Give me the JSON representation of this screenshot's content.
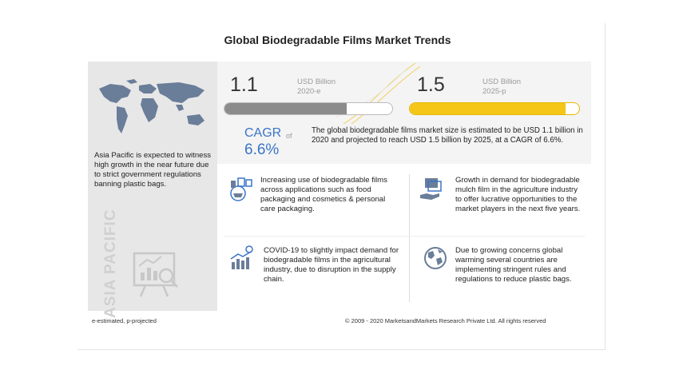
{
  "title": "Global Biodegradable Films Market Trends",
  "region": {
    "vertical_label": "ASIA PACIFIC",
    "description": "Asia Pacific is expected to witness high growth in the near future due to strict government regulations banning plastic bags."
  },
  "stats": {
    "value_2020": "1.1",
    "unit_2020_line1": "USD Billion",
    "unit_2020_line2": "2020-e",
    "value_2025": "1.5",
    "unit_2025_line1": "USD Billion",
    "unit_2025_line2": "2025-p",
    "bar_2020_fill": 0.73,
    "bar_2025_fill": 0.92,
    "cagr_label": "CAGR",
    "cagr_of": "of",
    "cagr_value": "6.6%",
    "summary": "The global biodegradable films market size is estimated to be USD 1.1 billion in 2020 and projected to reach USD 1.5 billion by 2025, at a CAGR of 6.6%."
  },
  "trends": [
    {
      "icon": "packaging-icon",
      "text": "Increasing use of biodegradable films across applications such as food packaging and cosmetics & personal care packaging."
    },
    {
      "icon": "money-hand-icon",
      "text": "Growth in demand for biodegradable mulch film in the agriculture industry to offer lucrative opportunities to the market players in the next five years."
    },
    {
      "icon": "covid-chart-icon",
      "text": "COVID-19 to slightly impact demand for biodegradable films in the agricultural industry, due to disruption in the supply chain."
    },
    {
      "icon": "globe-icon",
      "text": "Due to growing concerns global warming several countries are implementing stringent rules and regulations to reduce plastic bags."
    }
  ],
  "footer": {
    "legend": "e-estimated, p-projected",
    "copyright": "© 2009 - 2020 MarketsandMarkets Research Private Ltd. All rights reserved"
  },
  "colors": {
    "bar_2020": "#8c8c8c",
    "bar_2025": "#f5c518",
    "cagr": "#3a74c8",
    "map": "#6a7d99",
    "accent_lines": "#f0d060"
  }
}
